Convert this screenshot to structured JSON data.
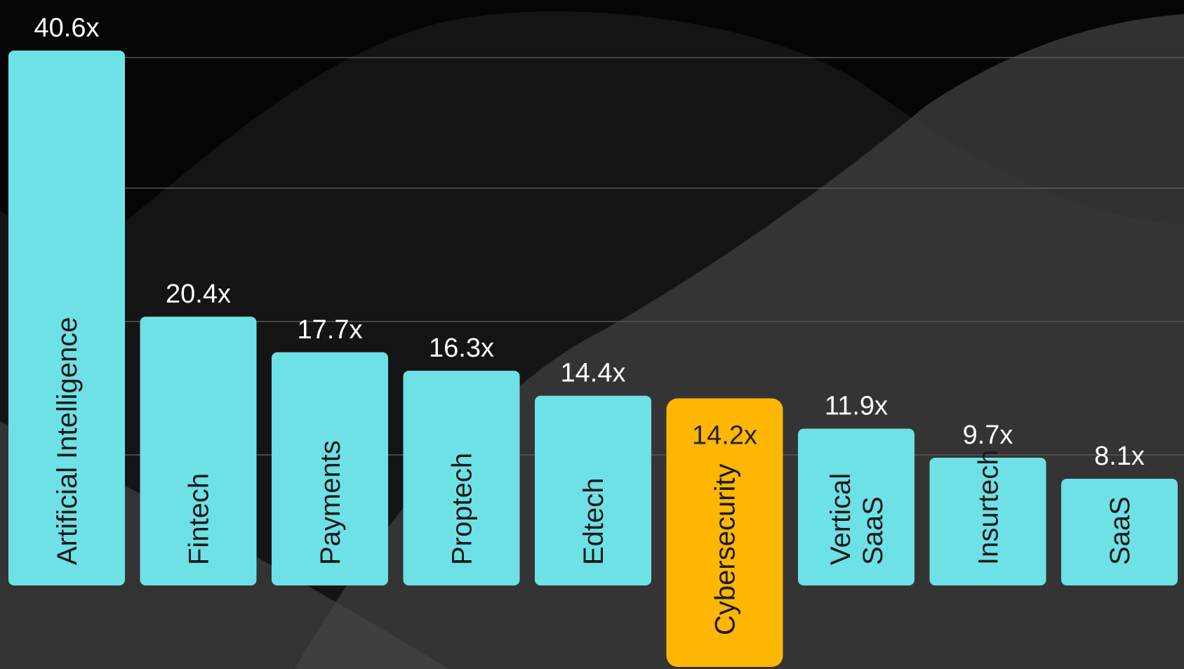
{
  "chart_data": {
    "type": "bar",
    "title": "",
    "xlabel": "",
    "ylabel": "",
    "ylim": [
      0,
      44
    ],
    "grid": true,
    "categories": [
      "Artificial Intelligence",
      "Fintech",
      "Payments",
      "Proptech",
      "Edtech",
      "Cybersecurity",
      "Vertical SaaS",
      "Insurtech",
      "SaaS"
    ],
    "category_lines": [
      [
        "Artificial Intelligence"
      ],
      [
        "Fintech"
      ],
      [
        "Payments"
      ],
      [
        "Proptech"
      ],
      [
        "Edtech"
      ],
      [
        "Cybersecurity"
      ],
      [
        "Vertical",
        "SaaS"
      ],
      [
        "Insurtech"
      ],
      [
        "SaaS"
      ]
    ],
    "values": [
      40.6,
      20.4,
      17.7,
      16.3,
      14.4,
      14.2,
      11.9,
      9.7,
      8.1
    ],
    "value_labels": [
      "40.6x",
      "20.4x",
      "17.7x",
      "16.3x",
      "14.4x",
      "14.2x",
      "11.9x",
      "9.7x",
      "8.1x"
    ],
    "highlight": "Cybersecurity",
    "colors": {
      "bar": "#6ee1e6",
      "highlight_bar": "#ffb703",
      "label_on_dark": "#ffffff",
      "label_on_highlight": "#222222",
      "category_text": "#1a1a1a",
      "gridline": "#5a5a5a"
    }
  }
}
